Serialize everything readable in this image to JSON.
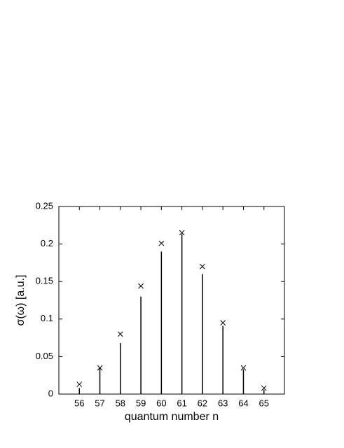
{
  "chart_data": {
    "type": "spike",
    "x_label": "quantum number n",
    "y_label": "σ(ω) [a.u.]",
    "x": [
      56,
      57,
      58,
      59,
      60,
      61,
      62,
      63,
      64,
      65
    ],
    "series": [
      {
        "type": "stem",
        "color": "#000000",
        "values": [
          0.008,
          0.035,
          0.068,
          0.13,
          0.19,
          0.213,
          0.16,
          0.091,
          0.033,
          0.006
        ]
      },
      {
        "type": "scatter",
        "marker": "x",
        "color": "#000000",
        "values": [
          0.013,
          0.035,
          0.08,
          0.144,
          0.201,
          0.215,
          0.17,
          0.095,
          0.035,
          0.008
        ]
      }
    ],
    "xlim": [
      55,
      66
    ],
    "xticks": [
      56,
      57,
      58,
      59,
      60,
      61,
      62,
      63,
      64,
      65
    ],
    "ylim": [
      0,
      0.25
    ],
    "yticks": [
      0,
      0.05,
      0.1,
      0.15,
      0.2,
      0.25
    ],
    "grid": false
  }
}
